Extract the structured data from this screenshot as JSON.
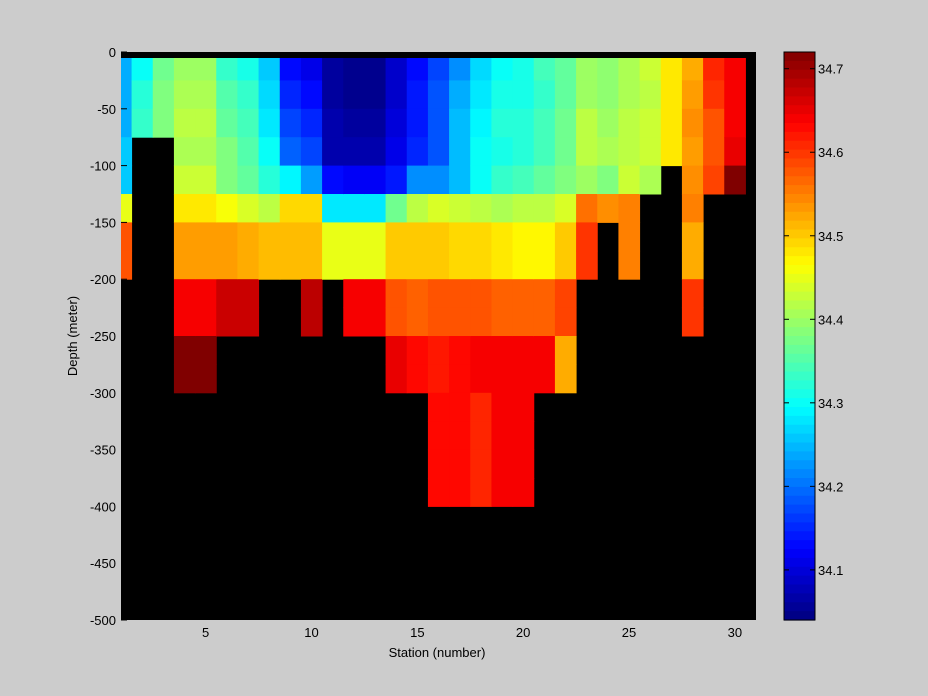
{
  "chart_data": {
    "type": "heatmap",
    "xlabel": "Station (number)",
    "ylabel": "Depth (meter)",
    "x_range": [
      1,
      31
    ],
    "y_range": [
      -500,
      0
    ],
    "x_ticks": [
      5,
      10,
      15,
      20,
      25,
      30
    ],
    "y_ticks": [
      0,
      -50,
      -100,
      -150,
      -200,
      -250,
      -300,
      -350,
      -400,
      -450,
      -500
    ],
    "colorbar": {
      "range": [
        34.04,
        34.72
      ],
      "ticks": [
        34.1,
        34.2,
        34.3,
        34.4,
        34.5,
        34.6,
        34.7
      ],
      "colormap": "jet"
    },
    "no_data_color": "#000000",
    "background_color": "#cccccc",
    "depth_bins": [
      -12.5,
      -37.5,
      -62.5,
      -87.5,
      -112.5,
      -137.5,
      -162.5,
      -187.5,
      -212.5,
      -237.5,
      -262.5,
      -287.5,
      -312.5,
      -337.5,
      -362.5,
      -387.5
    ],
    "stations": [
      1,
      2,
      3,
      4,
      5,
      6,
      7,
      8,
      9,
      10,
      11,
      12,
      13,
      14,
      15,
      16,
      17,
      18,
      19,
      20,
      21,
      22,
      23,
      24,
      25,
      26,
      27,
      28,
      29,
      30
    ],
    "values": [
      [
        34.24,
        34.24,
        34.24,
        34.26,
        34.26,
        34.45,
        34.58,
        34.58,
        null,
        null,
        null,
        null,
        null,
        null,
        null,
        null
      ],
      [
        34.3,
        34.32,
        34.33,
        null,
        null,
        null,
        null,
        null,
        null,
        null,
        null,
        null,
        null,
        null,
        null,
        null
      ],
      [
        34.37,
        34.38,
        34.38,
        null,
        null,
        null,
        null,
        null,
        null,
        null,
        null,
        null,
        null,
        null,
        null,
        null
      ],
      [
        34.4,
        34.41,
        34.42,
        34.41,
        34.43,
        34.48,
        34.53,
        34.53,
        34.64,
        34.64,
        34.72,
        34.72,
        null,
        null,
        null,
        null
      ],
      [
        34.4,
        34.41,
        34.42,
        34.41,
        34.43,
        34.48,
        34.53,
        34.53,
        34.64,
        34.64,
        34.72,
        34.72,
        null,
        null,
        null,
        null
      ],
      [
        34.33,
        34.35,
        34.36,
        34.38,
        34.38,
        34.46,
        34.53,
        34.53,
        34.67,
        34.67,
        null,
        null,
        null,
        null,
        null,
        null
      ],
      [
        34.31,
        34.33,
        34.34,
        34.35,
        34.36,
        34.44,
        34.52,
        34.52,
        34.67,
        34.67,
        null,
        null,
        null,
        null,
        null,
        null
      ],
      [
        34.26,
        34.27,
        34.28,
        34.3,
        34.32,
        34.42,
        34.51,
        34.51,
        null,
        null,
        null,
        null,
        null,
        null,
        null,
        null
      ],
      [
        34.13,
        34.15,
        34.17,
        34.19,
        34.29,
        34.49,
        34.51,
        34.51,
        null,
        null,
        null,
        null,
        null,
        null,
        null,
        null
      ],
      [
        34.11,
        34.13,
        34.15,
        34.17,
        34.23,
        34.49,
        34.51,
        34.51,
        34.68,
        34.68,
        null,
        null,
        null,
        null,
        null,
        null
      ],
      [
        34.06,
        34.06,
        34.07,
        34.07,
        34.13,
        34.28,
        34.45,
        34.45,
        null,
        null,
        null,
        null,
        null,
        null,
        null,
        null
      ],
      [
        34.05,
        34.05,
        34.06,
        34.07,
        34.12,
        34.28,
        34.45,
        34.45,
        34.64,
        34.64,
        null,
        null,
        null,
        null,
        null,
        null
      ],
      [
        34.05,
        34.05,
        34.06,
        34.07,
        34.12,
        34.28,
        34.45,
        34.45,
        34.64,
        34.64,
        null,
        null,
        null,
        null,
        null,
        null
      ],
      [
        34.09,
        34.09,
        34.1,
        34.11,
        34.14,
        34.37,
        34.5,
        34.5,
        34.58,
        34.58,
        34.65,
        34.65,
        null,
        null,
        null,
        null
      ],
      [
        34.13,
        34.14,
        34.14,
        34.15,
        34.22,
        34.42,
        34.5,
        34.5,
        34.57,
        34.57,
        34.63,
        34.63,
        null,
        null,
        null,
        null
      ],
      [
        34.17,
        34.18,
        34.18,
        34.18,
        34.22,
        34.44,
        34.5,
        34.5,
        34.58,
        34.58,
        34.62,
        34.62,
        34.63,
        34.63,
        34.63,
        34.63
      ],
      [
        34.22,
        34.24,
        34.25,
        34.25,
        34.25,
        34.43,
        34.49,
        34.49,
        34.58,
        34.58,
        34.63,
        34.63,
        34.63,
        34.63,
        34.63,
        34.63
      ],
      [
        34.27,
        34.28,
        34.29,
        34.3,
        34.3,
        34.42,
        34.49,
        34.49,
        34.58,
        34.58,
        34.64,
        34.64,
        34.61,
        34.61,
        34.61,
        34.61
      ],
      [
        34.3,
        34.31,
        34.32,
        34.31,
        34.33,
        34.41,
        34.48,
        34.48,
        34.57,
        34.57,
        34.64,
        34.64,
        34.64,
        34.64,
        34.64,
        34.64
      ],
      [
        34.31,
        34.31,
        34.32,
        34.32,
        34.34,
        34.42,
        34.47,
        34.47,
        34.57,
        34.57,
        34.64,
        34.64,
        34.64,
        34.64,
        34.64,
        34.64
      ],
      [
        34.34,
        34.33,
        34.34,
        34.34,
        34.36,
        34.42,
        34.47,
        34.47,
        34.57,
        34.57,
        34.64,
        34.64,
        null,
        null,
        null,
        null
      ],
      [
        34.36,
        34.36,
        34.37,
        34.37,
        34.38,
        34.44,
        34.5,
        34.5,
        34.59,
        34.59,
        34.52,
        34.52,
        null,
        null,
        null,
        null
      ],
      [
        34.4,
        34.4,
        34.42,
        34.42,
        34.4,
        34.56,
        34.6,
        34.6,
        null,
        null,
        null,
        null,
        null,
        null,
        null,
        null
      ],
      [
        34.39,
        34.39,
        34.4,
        34.41,
        34.38,
        34.54,
        null,
        null,
        null,
        null,
        null,
        null,
        null,
        null,
        null,
        null
      ],
      [
        34.41,
        34.41,
        34.42,
        34.42,
        34.43,
        34.55,
        34.55,
        34.55,
        null,
        null,
        null,
        null,
        null,
        null,
        null,
        null
      ],
      [
        34.43,
        34.42,
        34.43,
        34.43,
        34.41,
        null,
        null,
        null,
        null,
        null,
        null,
        null,
        null,
        null,
        null,
        null
      ],
      [
        34.48,
        34.48,
        34.48,
        34.48,
        null,
        null,
        null,
        null,
        null,
        null,
        null,
        null,
        null,
        null,
        null,
        null
      ],
      [
        34.52,
        34.53,
        34.54,
        34.53,
        34.54,
        34.55,
        34.52,
        34.52,
        34.6,
        34.6,
        null,
        null,
        null,
        null,
        null,
        null
      ],
      [
        34.61,
        34.6,
        34.58,
        34.58,
        34.59,
        null,
        null,
        null,
        null,
        null,
        null,
        null,
        null,
        null,
        null,
        null
      ],
      [
        34.64,
        34.64,
        34.64,
        34.65,
        34.72,
        null,
        null,
        null,
        null,
        null,
        null,
        null,
        null,
        null,
        null,
        null
      ]
    ]
  }
}
